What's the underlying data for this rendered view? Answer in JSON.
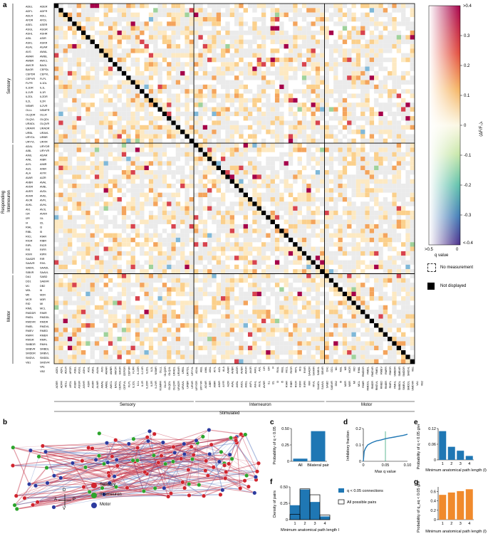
{
  "panels": {
    "a": "a",
    "b": "b",
    "c": "c",
    "d": "d",
    "e": "e",
    "f": "f",
    "g": "g"
  },
  "matrix": {
    "groups": [
      "Sensory",
      "Interneuron",
      "Motor"
    ],
    "y_axis_label": "Responding",
    "x_axis_label": "Stimulated",
    "labels_left": [
      "ADEL",
      "ADFL",
      "ADLR",
      "AFDR",
      "ASEL",
      "ASGL",
      "ASHL",
      "ASIL",
      "ASKL",
      "AUAL",
      "AVG",
      "AWAR",
      "AWBR",
      "AWCR",
      "BAGR",
      "CEPDR",
      "CEPVR",
      "FLPR",
      "IL1DR",
      "IL1VR",
      "IL2DL",
      "IL2L",
      "NSMR",
      "OLLL",
      "OLQDR",
      "OLQVL",
      "URADL",
      "URAVR",
      "URBL",
      "URYDL",
      "URYVL",
      "ADAL",
      "AIBL",
      "AIML",
      "AINL",
      "AIYL",
      "AIZL",
      "ALA",
      "AVAR",
      "AVBR",
      "AVDR",
      "AVER",
      "AVHR",
      "AVJR",
      "AVKL",
      "AVL",
      "I1R",
      "I2R",
      "I4",
      "RIAL",
      "RIBL",
      "RICL",
      "RIGR",
      "RIPL",
      "RIS",
      "RIVR",
      "SAADR",
      "SAAVR",
      "SABVL",
      "SIBVR",
      "DA1",
      "DD1",
      "M1",
      "M3L",
      "M5",
      "MCR",
      "RID",
      "RIML",
      "RMDDR",
      "RMDL",
      "RMDVR",
      "RMEL",
      "RMEV",
      "RMFR",
      "RMGR",
      "SMBDR",
      "SMBVR",
      "SMDDR",
      "SMDVL",
      "VB1"
    ],
    "labels_right": [
      "ADER",
      "ADFR",
      "ADLL",
      "AFDL",
      "ASER",
      "ASGR",
      "ASHR",
      "ASIR",
      "ASKR",
      "AUAR",
      "AWAL",
      "AWBL",
      "AWCL",
      "BAGL",
      "CEPDL",
      "CEPVL",
      "FLPL",
      "IL1DL",
      "IL1L",
      "IL1R",
      "IL2DR",
      "IL2R",
      "IL2VR",
      "NSMFR",
      "OLLR",
      "OLQDL",
      "OLQVR",
      "URADR",
      "URAVL",
      "URBR",
      "URXR",
      "URYDR",
      "URYVR",
      "ADAR",
      "AIBR",
      "AIMR",
      "AINR",
      "AIYR",
      "AIZR",
      "AVAL",
      "AVBL",
      "AVDL",
      "AVEL",
      "AVFL",
      "AVHL",
      "AVJL",
      "AVKR",
      "I1L",
      "I2L",
      "I3",
      "I5",
      "RIAR",
      "RIBR",
      "RICR",
      "RIFR",
      "RIPR",
      "RIR",
      "RIVL",
      "SAADL",
      "SAAVL",
      "SABD",
      "SABVR",
      "DB2",
      "I6",
      "M2R",
      "M3R",
      "MI",
      "MCL",
      "RIMR",
      "RMDDL",
      "RMDR",
      "RMDVL",
      "RMED",
      "RMER",
      "RMFL",
      "RMHL",
      "SMBDL",
      "SMBVL",
      "SMDDL",
      "SMDVR",
      "VA1",
      "VB2"
    ],
    "x_labels": [
      "ADEL",
      "ADFL",
      "ADLR",
      "AFDR",
      "ASEL",
      "ASGL",
      "ASHL",
      "ASIL",
      "ASKL",
      "AUAL",
      "AVG",
      "AWAR",
      "AWBR",
      "AWCR",
      "BAGR",
      "CEPDR",
      "CEPVR",
      "FLPR",
      "IL1DR",
      "IL1VR",
      "IL2DL",
      "IL2L",
      "NSMR",
      "OLLL",
      "OLQDR",
      "OLQVL",
      "URADL",
      "URAVR",
      "URBL",
      "URYDL",
      "URYVL",
      "ADAL",
      "AIBL",
      "AIML",
      "AINL",
      "AIYL",
      "AIZL",
      "ALA",
      "AVAR",
      "AVBR",
      "AVDR",
      "AVER",
      "AVHR",
      "AVJR",
      "AVKL",
      "AVL",
      "I1R",
      "I2R",
      "I4",
      "RIAL",
      "RIBL",
      "RICL",
      "RIGR",
      "RIPL",
      "RIS",
      "RIVR",
      "SAADR",
      "SAAVR",
      "SABVL",
      "SIBVR",
      "DA1",
      "DD1",
      "M1",
      "M3L",
      "M5",
      "MCR",
      "RID",
      "RIML",
      "RMDDR",
      "RMDL",
      "RMDVR",
      "RMEL",
      "RMEV",
      "RMFR",
      "RMGR",
      "SMBDR",
      "SMBVR",
      "SMDDR",
      "SMDVL",
      "VB1"
    ],
    "x_labels_2": [
      "ADER",
      "ADFR",
      "ADLL",
      "AFDL",
      "ASER",
      "ASGR",
      "ASHR",
      "ASIR",
      "ASKR",
      "AUAR",
      "AWAL",
      "AWBL",
      "AWCL",
      "BAGL",
      "CEPDL",
      "CEPVL",
      "FLPL",
      "IL1DL",
      "IL1L",
      "IL1R",
      "IL2DR",
      "IL2R",
      "IL2VR",
      "NSMFR",
      "OLLR",
      "OLQDL",
      "OLQVR",
      "URADR",
      "URAVL",
      "URBR",
      "URXR",
      "URYDR",
      "URYVR",
      "ADAR",
      "AIBR",
      "AIMR",
      "AINR",
      "AIYR",
      "AIZR",
      "AVAL",
      "AVBL",
      "AVDL",
      "AVEL",
      "AVFL",
      "AVHL",
      "AVJL",
      "AVKR",
      "I1L",
      "I2L",
      "I3",
      "I5",
      "RIAR",
      "RIBR",
      "RICR",
      "RIFR",
      "RIPR",
      "RIR",
      "RIVL",
      "SAADL",
      "SAAVL",
      "SABD",
      "SABVR",
      "DB2",
      "I6",
      "M2R",
      "M3R",
      "MI",
      "MCL",
      "RIMR",
      "RMDDL",
      "RMDR",
      "RMDVL",
      "RMED",
      "RMER",
      "RMFL",
      "RMHL",
      "SMBDL",
      "SMBVL",
      "SMDDL",
      "SMDVR",
      "VA1",
      "VB2"
    ]
  },
  "colorbar": {
    "title": "⟨ΔF/F₀⟩ₜ",
    "top_label": ">0.4",
    "ticks": [
      "0.3",
      "0.2",
      "0.1",
      "0",
      "-0.1",
      "-0.2",
      "-0.3"
    ],
    "bottom_label": "<-0.4",
    "x_left": ">0.5",
    "x_right": "0",
    "x_title": "q value",
    "accent_pos": "#a5004a",
    "accent_neg": "#3a2c8f"
  },
  "legend_a": {
    "no_measurement": "No measurement",
    "not_displayed": "Not displayed"
  },
  "panel_b": {
    "compass": {
      "D": "D",
      "V": "V",
      "A": "A",
      "P": "P"
    },
    "legend": [
      {
        "label": "Sensory",
        "color": "#d0242e"
      },
      {
        "label": "Interneuron",
        "color": "#2ca42c"
      },
      {
        "label": "Motor",
        "color": "#2c3a9e"
      }
    ]
  },
  "chart_data": [
    {
      "type": "bar",
      "panel": "c",
      "categories": [
        "All",
        "Bilateral pair"
      ],
      "values": [
        0.04,
        0.46
      ],
      "ylabel": "Probability of q < 0.05",
      "yticks": [
        "0",
        "0.25",
        "0.50"
      ],
      "ylim": [
        0,
        0.5
      ],
      "color": "#1f77b4"
    },
    {
      "type": "line",
      "panel": "d",
      "x": [
        0,
        0.002,
        0.005,
        0.01,
        0.02,
        0.03,
        0.04,
        0.05,
        0.06,
        0.07,
        0.08,
        0.09,
        0.1
      ],
      "y": [
        0,
        0.06,
        0.08,
        0.1,
        0.115,
        0.125,
        0.13,
        0.138,
        0.143,
        0.148,
        0.153,
        0.158,
        0.165
      ],
      "ylabel": "Inhibitory fraction",
      "xlabel": "Max q value",
      "xticks": [
        "0",
        "0.05",
        "0.10"
      ],
      "yticks": [
        "0",
        "0.1",
        "0.2"
      ],
      "xlim": [
        0,
        0.1
      ],
      "ylim": [
        0,
        0.2
      ],
      "vline": 0.05,
      "vline_color": "#3aa87a",
      "color": "#1f77b4"
    },
    {
      "type": "bar",
      "panel": "e",
      "categories": [
        "1",
        "2",
        "3",
        "4"
      ],
      "values": [
        0.11,
        0.05,
        0.035,
        0.015
      ],
      "ylabel": "Probability of q < 0.05 given l",
      "xlabel": "Minimum anatomical path length (l)",
      "yticks": [
        "0",
        "0.06",
        "0.12"
      ],
      "ylim": [
        0,
        0.12
      ],
      "color": "#1f77b4"
    },
    {
      "type": "bar",
      "panel": "f",
      "categories": [
        "1",
        "2",
        "3",
        "4"
      ],
      "series": [
        {
          "name": "q < 0.05 connections",
          "values": [
            0.22,
            0.46,
            0.27,
            0.05
          ]
        },
        {
          "name": "All possible pairs",
          "values": [
            0.08,
            0.47,
            0.38,
            0.07
          ]
        }
      ],
      "ylabel": "Density of pairs",
      "xlabel": "Minimum anatomical path length l",
      "yticks": [
        "0",
        "0.25",
        "0.50"
      ],
      "ylim": [
        0,
        0.5
      ],
      "color": "#1f77b4"
    },
    {
      "type": "bar",
      "panel": "g",
      "categories": [
        "1",
        "2",
        "3",
        "4"
      ],
      "values": [
        0.53,
        0.58,
        0.61,
        0.65
      ],
      "ylabel": "Probability of q_eq < 0.05 given l",
      "xlabel": "Minimum anatomical path length (l)",
      "yticks": [
        "0",
        "0.2",
        "0.4",
        "0.6"
      ],
      "ylim": [
        0,
        0.7
      ],
      "color": "#f08a2c"
    }
  ]
}
